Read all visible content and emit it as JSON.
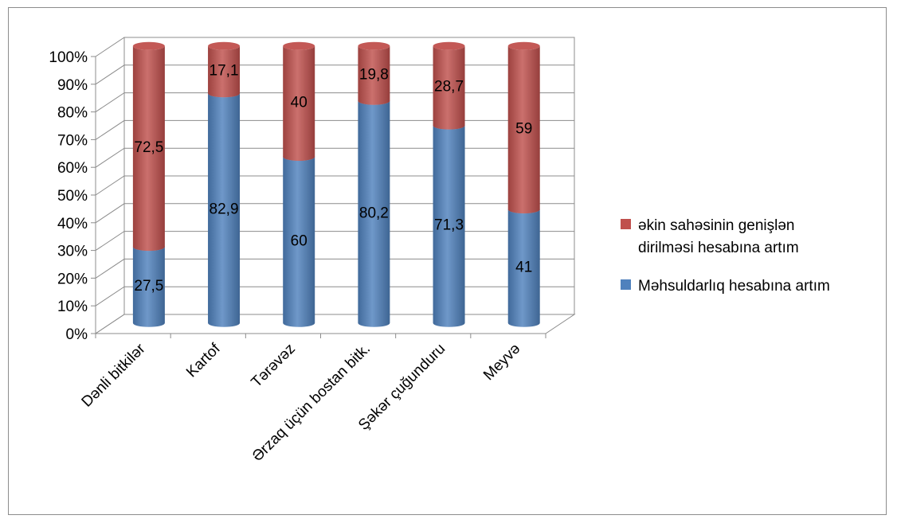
{
  "chart_data": {
    "type": "bar",
    "stacked": true,
    "percent_stacked": true,
    "three_d": true,
    "categories": [
      "Dənli bitkilər",
      "Kartof",
      "Tərəvəz",
      "Ərzaq üçün bostan bitk.",
      "Şəkər çuğunduru",
      "Meyvə"
    ],
    "series": [
      {
        "name": "Məhsuldarlıq hesabına artım",
        "values": [
          27.5,
          82.9,
          60,
          80.2,
          71.3,
          41
        ],
        "labels": [
          "27,5",
          "82,9",
          "60",
          "80,2",
          "71,3",
          "41"
        ],
        "color": "#4f81bd"
      },
      {
        "name": "əkin sahəsinin genişlən dirilməsi hesabına artım",
        "legend_lines": [
          "əkin sahəsinin genişlən",
          "dirilməsi hesabına artım"
        ],
        "values": [
          72.5,
          17.1,
          40,
          19.8,
          28.7,
          59
        ],
        "labels": [
          "72,5",
          "17,1",
          "40",
          "19,8",
          "28,7",
          "59"
        ],
        "color": "#c0504d"
      }
    ],
    "y_ticks": [
      "0%",
      "10%",
      "20%",
      "30%",
      "40%",
      "50%",
      "60%",
      "70%",
      "80%",
      "90%",
      "100%"
    ],
    "ylim": [
      0,
      100
    ],
    "grid": true,
    "legend_position": "right"
  }
}
